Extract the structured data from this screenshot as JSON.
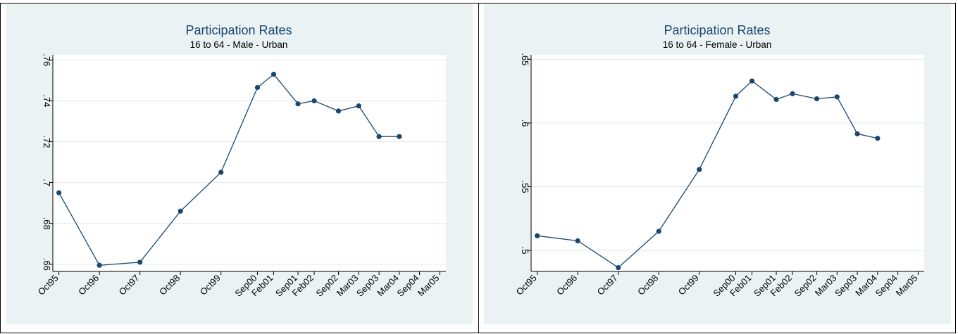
{
  "figure": {
    "caption": ""
  },
  "colors": {
    "panel_bg": "#eaf2f3",
    "plot_bg": "#ffffff",
    "series": "#1a476f",
    "grid": "#e1e9ea"
  },
  "chart_data": [
    {
      "type": "line",
      "title": "Participation Rates",
      "subtitle": "16 to 64 - Male - Urban",
      "xlabel": "",
      "ylabel": "",
      "categories": [
        "Oct95",
        "Oct96",
        "Oct97",
        "Oct98",
        "Oct99",
        "Sep00",
        "Feb01",
        "Sep01",
        "Feb02",
        "Sep02",
        "Mar03",
        "Sep03",
        "Mar04",
        "Sep04",
        "Mar05"
      ],
      "x": [
        0,
        1,
        2,
        3,
        4,
        4.9,
        5.3,
        5.9,
        6.3,
        6.9,
        7.4,
        7.9,
        8.4,
        8.9,
        9.4
      ],
      "series": [
        {
          "values": [
            0.695,
            0.6595,
            0.661,
            0.686,
            0.705,
            0.7465,
            0.753,
            0.7385,
            0.74,
            0.735,
            0.7375,
            0.7225,
            0.7225,
            null,
            null
          ]
        }
      ],
      "yticks": [
        0.66,
        0.68,
        0.7,
        0.72,
        0.74,
        0.76
      ],
      "ytick_labels": [
        ".66",
        ".68",
        ".7",
        ".72",
        ".74",
        ".76"
      ],
      "ylim": [
        0.6565,
        0.7625
      ],
      "xlim": [
        -0.15,
        9.55
      ],
      "grid": true,
      "legend": "none"
    },
    {
      "type": "line",
      "title": "Participation Rates",
      "subtitle": "16 to 64 - Female - Urban",
      "xlabel": "",
      "ylabel": "",
      "categories": [
        "Oct95",
        "Oct96",
        "Oct97",
        "Oct98",
        "Oct99",
        "Sep00",
        "Feb01",
        "Sep01",
        "Feb02",
        "Sep02",
        "Mar03",
        "Sep03",
        "Mar04",
        "Sep04",
        "Mar05"
      ],
      "x": [
        0,
        1,
        2,
        3,
        4,
        4.9,
        5.3,
        5.9,
        6.3,
        6.9,
        7.4,
        7.9,
        8.4,
        8.9,
        9.4
      ],
      "series": [
        {
          "values": [
            0.5115,
            0.5075,
            0.4865,
            0.515,
            0.5635,
            0.621,
            0.633,
            0.6185,
            0.623,
            0.619,
            0.6205,
            0.5915,
            0.588,
            null,
            null
          ]
        }
      ],
      "yticks": [
        0.5,
        0.55,
        0.6,
        0.65
      ],
      "ytick_labels": [
        ".5",
        ".55",
        ".6",
        ".65"
      ],
      "ylim": [
        0.4835,
        0.6535
      ],
      "xlim": [
        -0.15,
        9.55
      ],
      "grid": true,
      "legend": "none"
    }
  ]
}
